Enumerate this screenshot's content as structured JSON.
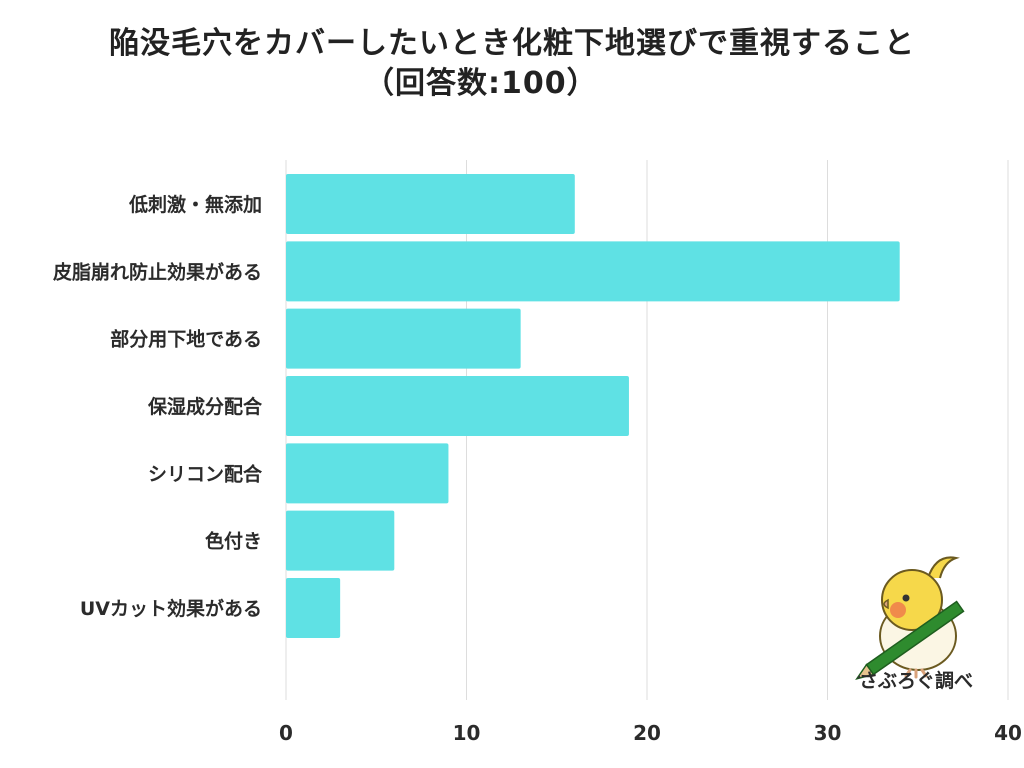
{
  "title": {
    "line1": "陥没毛穴をカバーしたいとき化粧下地選びで重視すること",
    "line2": "（回答数:100）"
  },
  "credit": "さぶろぐ調べ",
  "mascot_icon": "cockatiel-with-pencil-icon",
  "colors": {
    "bar": "#5fe1e4",
    "grid": "#dddddd",
    "text": "#2b2b2b"
  },
  "chart_data": {
    "type": "bar",
    "orientation": "horizontal",
    "categories": [
      "低刺激・無添加",
      "皮脂崩れ防止効果がある",
      "部分用下地である",
      "保湿成分配合",
      "シリコン配合",
      "色付き",
      "UVカット効果がある"
    ],
    "values": [
      16,
      34,
      13,
      19,
      9,
      6,
      3
    ],
    "xlim": [
      0,
      40
    ],
    "xticks": [
      "0",
      "10",
      "20",
      "30",
      "40"
    ],
    "grid": true,
    "legend": "none"
  }
}
